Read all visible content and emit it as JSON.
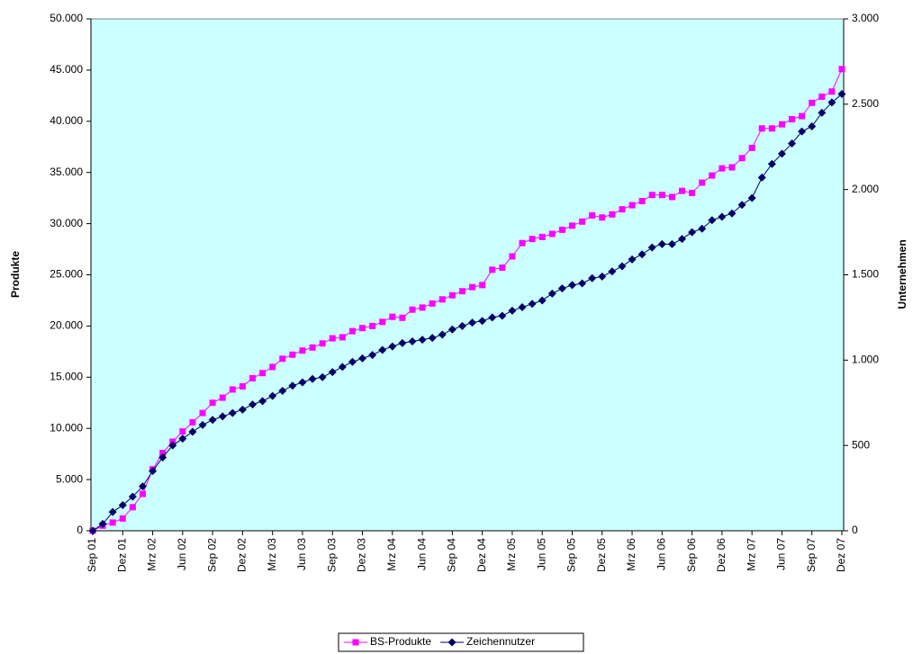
{
  "chart_data": {
    "type": "line",
    "ylabel": "Produkte",
    "y2label": "Unternehmen",
    "categories": [
      "Sep 01",
      null,
      null,
      "Dez 01",
      null,
      null,
      "Mrz 02",
      null,
      null,
      "Jun 02",
      null,
      null,
      "Sep 02",
      null,
      null,
      "Dez 02",
      null,
      null,
      "Mrz 03",
      null,
      null,
      "Jun 03",
      null,
      null,
      "Sep 03",
      null,
      null,
      "Dez 03",
      null,
      null,
      "Mrz 04",
      null,
      null,
      "Jun 04",
      null,
      null,
      "Sep 04",
      null,
      null,
      "Dez 04",
      null,
      null,
      "Mrz 05",
      null,
      null,
      "Jun 05",
      null,
      null,
      "Sep 05",
      null,
      null,
      "Dez 05",
      null,
      null,
      "Mrz 06",
      null,
      null,
      "Jun 06",
      null,
      null,
      "Sep 06",
      null,
      null,
      "Dez 06",
      null,
      null,
      "Mrz 07",
      null,
      null,
      "Jun 07",
      null,
      null,
      "Sep 07",
      null,
      null,
      "Dez 07"
    ],
    "series": [
      {
        "name": "BS-Produkte",
        "color": "#ff00ff",
        "marker": "square",
        "values": [
          0,
          500,
          800,
          1200,
          2300,
          3600,
          6000,
          7600,
          8700,
          9700,
          10600,
          11500,
          12500,
          13000,
          13800,
          14100,
          14900,
          15400,
          16000,
          16800,
          17200,
          17600,
          17900,
          18300,
          18800,
          18900,
          19500,
          19800,
          20000,
          20400,
          20900,
          20800,
          21600,
          21800,
          22200,
          22600,
          23000,
          23400,
          23800,
          24000,
          25500,
          25700,
          26800,
          28100,
          28500,
          28700,
          29000,
          29400,
          29800,
          30200,
          30800,
          30600,
          30900,
          31400,
          31800,
          32200,
          32800,
          32800,
          32600,
          33200,
          33000,
          34000,
          34700,
          35400,
          35500,
          36400,
          37400,
          39300,
          39300,
          39700,
          40200,
          40500,
          41800,
          42400,
          42900,
          45100
        ]
      },
      {
        "name": "Zeichennutzer",
        "color": "#000066",
        "marker": "diamond",
        "axis": "y2",
        "values": [
          0,
          40,
          110,
          150,
          200,
          260,
          350,
          430,
          500,
          540,
          580,
          620,
          650,
          670,
          690,
          710,
          740,
          760,
          790,
          820,
          850,
          870,
          890,
          900,
          930,
          960,
          990,
          1010,
          1030,
          1060,
          1080,
          1100,
          1110,
          1120,
          1130,
          1150,
          1180,
          1200,
          1220,
          1230,
          1250,
          1260,
          1290,
          1310,
          1330,
          1350,
          1390,
          1420,
          1440,
          1450,
          1480,
          1490,
          1520,
          1550,
          1590,
          1620,
          1660,
          1680,
          1680,
          1710,
          1750,
          1770,
          1820,
          1840,
          1860,
          1910,
          1950,
          2070,
          2150,
          2210,
          2270,
          2340,
          2370,
          2450,
          2510,
          2560
        ]
      }
    ],
    "ylim": [
      0,
      50000
    ],
    "yticks": [
      0,
      {
        "value": 5000,
        "label": "5.000"
      },
      {
        "value": 10000,
        "label": "10.000"
      },
      {
        "value": 15000,
        "label": "15.000"
      },
      {
        "value": 20000,
        "label": "20.000"
      },
      {
        "value": 25000,
        "label": "25.000"
      },
      {
        "value": 30000,
        "label": "30.000"
      },
      {
        "value": 35000,
        "label": "35.000"
      },
      {
        "value": 40000,
        "label": "40.000"
      },
      {
        "value": 45000,
        "label": "45.000"
      },
      {
        "value": 50000,
        "label": "50.000"
      }
    ],
    "y2lim": [
      0,
      3000
    ],
    "y2ticks": [
      0,
      500,
      {
        "value": 1000,
        "label": "1.000"
      },
      {
        "value": 1500,
        "label": "1.500"
      },
      {
        "value": 2000,
        "label": "2.000"
      },
      {
        "value": 2500,
        "label": "2.500"
      },
      {
        "value": 3000,
        "label": "3.000"
      }
    ],
    "plot_background": "#ccffff",
    "legend": "bottom"
  }
}
